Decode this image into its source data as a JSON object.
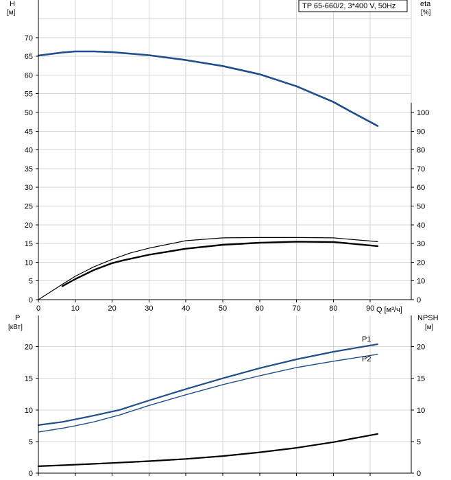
{
  "legend_text": "TP 65-660/2, 3*400 V, 50Hz",
  "colors": {
    "head": "#1f4e8c",
    "power": "#1f4e8c",
    "eta": "#000000",
    "npsh": "#000000",
    "grid": "#d4d4d4"
  },
  "chart_data": [
    {
      "type": "line",
      "xlabel": "Q [м³/ч]",
      "xlim": [
        0,
        100
      ],
      "x_ticks": [
        0,
        10,
        20,
        30,
        40,
        50,
        60,
        70,
        80,
        90
      ],
      "y_left": {
        "label": "H",
        "unit": "[м]",
        "lim": [
          0,
          80
        ],
        "ticks": [
          0,
          5,
          10,
          15,
          20,
          25,
          30,
          35,
          40,
          45,
          50,
          55,
          60,
          65,
          70
        ]
      },
      "y_right": {
        "label": "eta",
        "unit": "[%]",
        "lim": [
          0,
          100
        ],
        "ticks": [
          0,
          10,
          20,
          30,
          40,
          50,
          60,
          70,
          80,
          90,
          100
        ]
      },
      "grid": true,
      "legend_placement": "top-right",
      "series": [
        {
          "axis": "left",
          "width": 2.6,
          "color_key": "head",
          "x": [
            0,
            6.5,
            10,
            15,
            20,
            30,
            40,
            50,
            60,
            70,
            80,
            85,
            92
          ],
          "y": [
            65.2,
            66.0,
            66.3,
            66.3,
            66.1,
            65.3,
            64.0,
            62.4,
            60.2,
            57.0,
            52.8,
            50.1,
            46.4
          ]
        },
        {
          "axis": "right",
          "width": 1.2,
          "color_key": "eta",
          "x": [
            0,
            6.5,
            10,
            15,
            20,
            25,
            30,
            40,
            50,
            60,
            70,
            80,
            92
          ],
          "y": [
            0,
            8.2,
            12.5,
            17.5,
            21.5,
            25.0,
            27.5,
            31.5,
            33.0,
            33.2,
            33.2,
            33.0,
            31.0
          ]
        },
        {
          "axis": "right",
          "width": 2.4,
          "color_key": "eta",
          "x": [
            6.5,
            10,
            15,
            20,
            23,
            30,
            40,
            50,
            60,
            70,
            80,
            92
          ],
          "y": [
            7.2,
            11.0,
            15.8,
            19.5,
            21.0,
            24.0,
            27.2,
            29.3,
            30.4,
            31.0,
            30.8,
            28.6
          ]
        }
      ]
    },
    {
      "type": "line",
      "x_ticks": [
        0,
        10,
        20,
        30,
        40,
        50,
        60,
        70,
        80,
        90
      ],
      "xlim": [
        0,
        100
      ],
      "y_left": {
        "label": "P",
        "unit": "[кВт]",
        "lim": [
          0,
          25
        ],
        "ticks": [
          0,
          5,
          10,
          15,
          20
        ]
      },
      "y_right": {
        "label": "NPSH",
        "unit": "[м]",
        "lim": [
          0,
          25
        ],
        "ticks": [
          0,
          5,
          10,
          15,
          20
        ]
      },
      "grid": true,
      "series": [
        {
          "name": "P1",
          "axis": "left",
          "width": 2.2,
          "color_key": "power",
          "x": [
            0,
            6.5,
            10,
            15,
            22,
            30,
            40,
            50,
            60,
            70,
            80,
            92
          ],
          "y": [
            7.6,
            8.1,
            8.5,
            9.1,
            10.0,
            11.5,
            13.3,
            15.0,
            16.6,
            18.0,
            19.2,
            20.4
          ]
        },
        {
          "name": "P2",
          "axis": "left",
          "width": 1.4,
          "color_key": "power",
          "x": [
            0,
            6.5,
            10,
            15,
            22,
            30,
            40,
            50,
            60,
            70,
            80,
            92
          ],
          "y": [
            6.5,
            7.1,
            7.5,
            8.1,
            9.2,
            10.7,
            12.4,
            14.0,
            15.4,
            16.7,
            17.7,
            18.8
          ]
        },
        {
          "axis": "right",
          "width": 2.2,
          "color_key": "npsh",
          "x": [
            0,
            6.5,
            20,
            30,
            40,
            50,
            60,
            70,
            80,
            92
          ],
          "y": [
            1.1,
            1.25,
            1.6,
            1.9,
            2.25,
            2.7,
            3.3,
            4.0,
            4.9,
            6.2
          ]
        }
      ]
    }
  ]
}
